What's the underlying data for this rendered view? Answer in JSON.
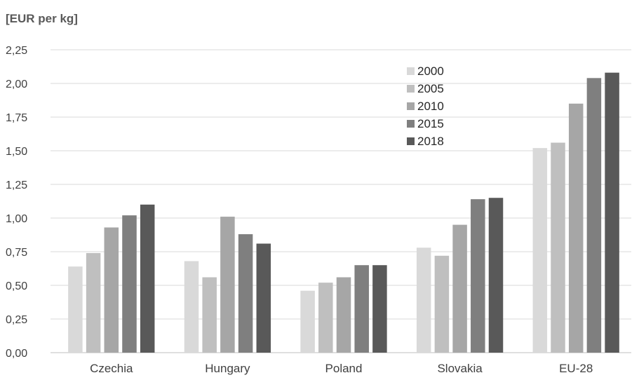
{
  "chart_data": {
    "type": "bar",
    "unit_label": "[EUR per kg]",
    "categories": [
      "Czechia",
      "Hungary",
      "Poland",
      "Slovakia",
      "EU-28"
    ],
    "series": [
      {
        "name": "2000",
        "color": "#d9d9d9",
        "values": [
          0.64,
          0.68,
          0.46,
          0.78,
          1.52
        ]
      },
      {
        "name": "2005",
        "color": "#bfbfbf",
        "values": [
          0.74,
          0.56,
          0.52,
          0.72,
          1.56
        ]
      },
      {
        "name": "2010",
        "color": "#a6a6a6",
        "values": [
          0.93,
          1.01,
          0.56,
          0.95,
          1.85
        ]
      },
      {
        "name": "2015",
        "color": "#7f7f7f",
        "values": [
          1.02,
          0.88,
          0.65,
          1.14,
          2.04
        ]
      },
      {
        "name": "2018",
        "color": "#595959",
        "values": [
          1.1,
          0.81,
          0.65,
          1.15,
          2.08
        ]
      }
    ],
    "yticks": [
      "0,00",
      "0,25",
      "0,50",
      "0,75",
      "1,00",
      "1,25",
      "1,50",
      "1,75",
      "2,00",
      "2,25"
    ],
    "ylim": [
      0,
      2.25
    ],
    "grid": true,
    "legend_position": "top-right"
  }
}
